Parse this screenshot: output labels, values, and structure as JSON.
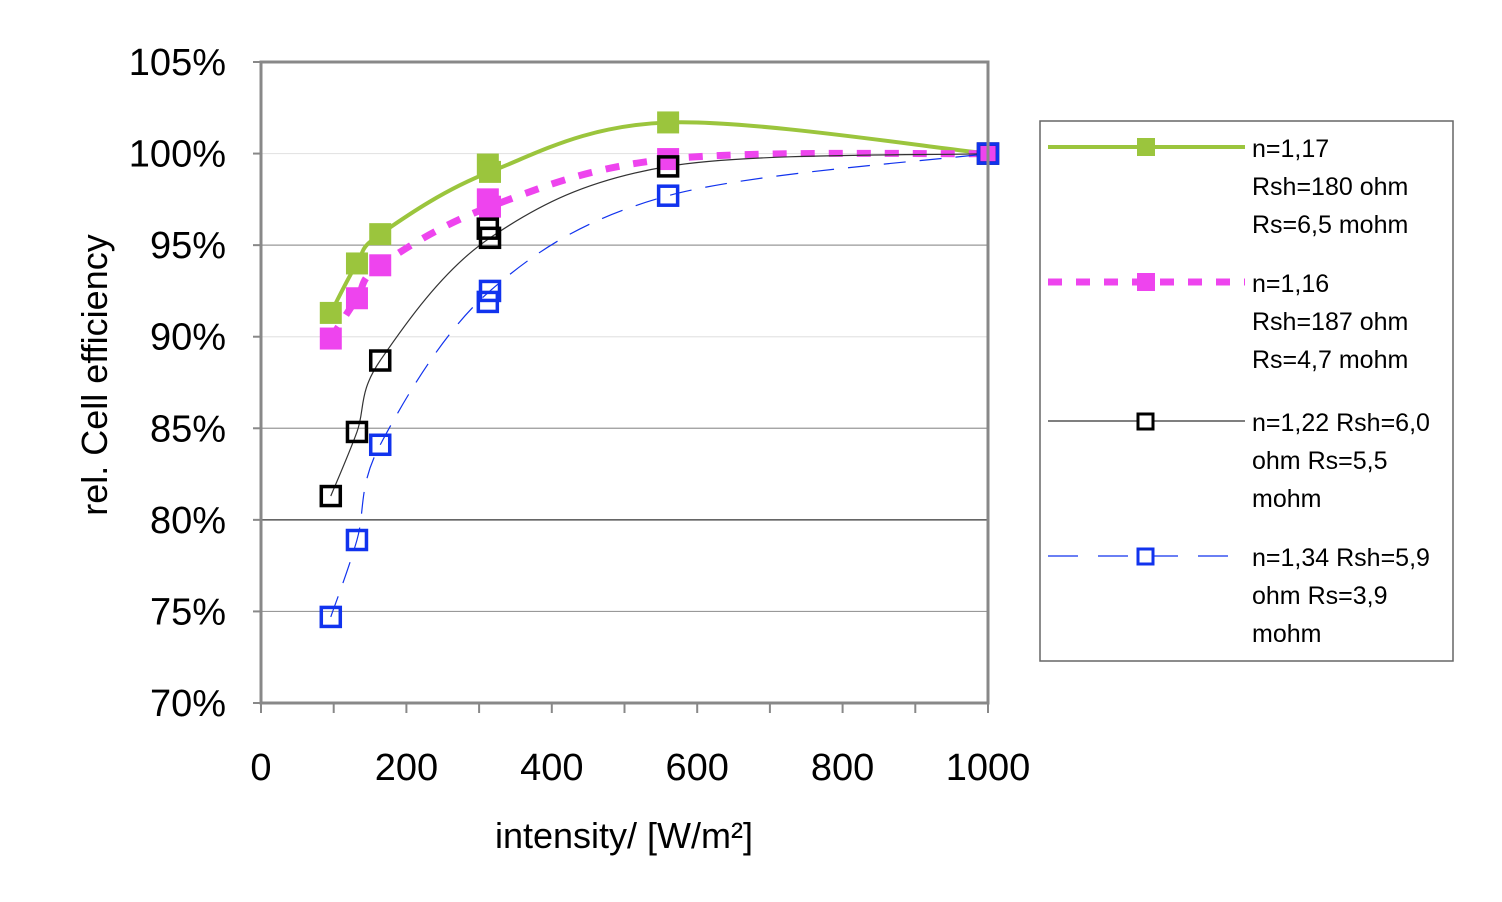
{
  "chart_data": {
    "type": "line",
    "title": "",
    "xlabel": "intensity/ [W/m²]",
    "ylabel": "rel. Cell efficiency",
    "xlim": [
      0,
      1000
    ],
    "ylim": [
      70,
      105
    ],
    "x_ticks": [
      0,
      200,
      400,
      600,
      800,
      1000
    ],
    "x_tick_labels": [
      "0",
      "200",
      "400",
      "600",
      "800",
      "1000"
    ],
    "y_ticks": [
      70,
      75,
      80,
      85,
      90,
      95,
      100,
      105
    ],
    "y_tick_labels": [
      "70%",
      "75%",
      "80%",
      "85%",
      "90%",
      "95%",
      "100%",
      "105%"
    ],
    "grid": true,
    "legend_position": "right",
    "series": [
      {
        "name": "n=1,17 Rsh=180 ohm Rs=6,5 mohm",
        "legend_lines": [
          "n=1,17",
          "Rsh=180 ohm",
          "Rs=6,5 mohm"
        ],
        "color": "#9bc53d",
        "style": "solid",
        "marker": "filled-square",
        "x": [
          96,
          132,
          164,
          312,
          315,
          560,
          1000
        ],
        "y": [
          91.3,
          94.0,
          95.6,
          99.4,
          99.0,
          101.7,
          100.0
        ]
      },
      {
        "name": "n=1,16 Rsh=187 ohm Rs=4,7 mohm",
        "legend_lines": [
          "n=1,16",
          "Rsh=187 ohm",
          "Rs=4,7 mohm"
        ],
        "color": "#ee44ee",
        "style": "dotted",
        "marker": "filled-square",
        "x": [
          96,
          132,
          164,
          312,
          315,
          560,
          1000
        ],
        "y": [
          89.9,
          92.1,
          93.9,
          97.5,
          97.1,
          99.7,
          100.0
        ]
      },
      {
        "name": "n=1,22 Rsh=6,0 ohm Rs=5,5 mohm",
        "legend_lines": [
          "n=1,22 Rsh=6,0",
          "ohm Rs=5,5",
          "mohm"
        ],
        "color": "#000000",
        "style": "thin",
        "marker": "open-square",
        "x": [
          96,
          132,
          164,
          312,
          315,
          560,
          1000
        ],
        "y": [
          81.3,
          84.8,
          88.7,
          95.9,
          95.4,
          99.3,
          100.0
        ]
      },
      {
        "name": "n=1,34 Rsh=5,9 ohm Rs=3,9 mohm",
        "legend_lines": [
          "n=1,34 Rsh=5,9",
          "ohm Rs=3,9",
          "mohm"
        ],
        "color": "#1133ee",
        "style": "dashed",
        "marker": "open-square",
        "x": [
          96,
          132,
          164,
          312,
          315,
          560,
          1000
        ],
        "y": [
          74.7,
          78.9,
          84.1,
          91.9,
          92.5,
          97.7,
          100.0
        ]
      }
    ]
  }
}
